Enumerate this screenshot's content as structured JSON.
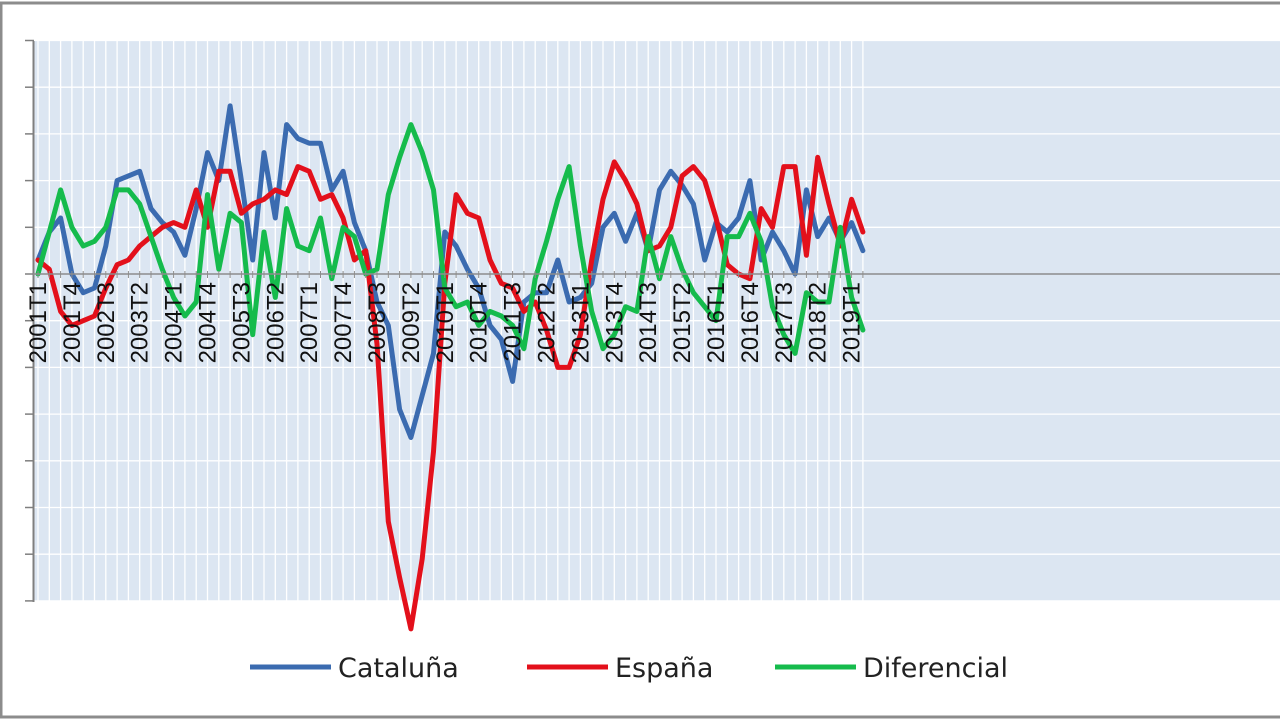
{
  "chart_data": {
    "type": "line",
    "x": [
      "2001T1",
      "2001T2",
      "2001T3",
      "2001T4",
      "2002T1",
      "2002T2",
      "2002T3",
      "2002T4",
      "2003T1",
      "2003T2",
      "2003T3",
      "2003T4",
      "2004T1",
      "2004T2",
      "2004T3",
      "2004T4",
      "2005T1",
      "2005T2",
      "2005T3",
      "2005T4",
      "2006T1",
      "2006T2",
      "2006T3",
      "2006T4",
      "2007T1",
      "2007T2",
      "2007T3",
      "2007T4",
      "2008T1",
      "2008T2",
      "2008T3",
      "2008T4",
      "2009T1",
      "2009T2",
      "2009T3",
      "2009T4",
      "2010T1",
      "2010T2",
      "2010T3",
      "2010T4",
      "2011T1",
      "2011T2",
      "2011T3",
      "2011T4",
      "2012T1",
      "2012T2",
      "2012T3",
      "2012T4",
      "2013T1",
      "2013T2",
      "2013T3",
      "2013T4",
      "2014T1",
      "2014T2",
      "2014T3",
      "2014T4",
      "2015T1",
      "2015T2",
      "2015T3",
      "2015T4",
      "2016T1",
      "2016T2",
      "2016T3",
      "2016T4",
      "2017T1",
      "2017T2",
      "2017T3",
      "2017T4",
      "2018T1",
      "2018T2",
      "2018T3",
      "2018T4",
      "2019T1",
      "2019T2"
    ],
    "x_tick_labels": [
      "2001T1",
      "2001T4",
      "2002T3",
      "2003T2",
      "2004T1",
      "2004T4",
      "2005T3",
      "2006T2",
      "2007T1",
      "2007T4",
      "2008T3",
      "2009T2",
      "2010T1",
      "2010T4",
      "2011T3",
      "2012T2",
      "2013T1",
      "2013T4",
      "2014T3",
      "2015T2",
      "2016T1",
      "2016T4",
      "2017T3",
      "2018T2",
      "2019T1"
    ],
    "y_gridlines": [
      5,
      4,
      3,
      2,
      1,
      0,
      -1,
      -2,
      -3,
      -4,
      -5,
      -6,
      -7
    ],
    "series": [
      {
        "name": "Cataluña",
        "color": "#3b6bb0",
        "values": [
          0.3,
          0.9,
          1.2,
          0,
          -0.4,
          -0.3,
          0.6,
          2,
          2.1,
          2.2,
          1.4,
          1.1,
          0.9,
          0.4,
          1.4,
          2.6,
          2,
          3.6,
          2,
          0.3,
          2.6,
          1.2,
          3.2,
          2.9,
          2.8,
          2.8,
          1.8,
          2.2,
          1.1,
          0.5,
          -0.6,
          -1.1,
          -2.9,
          -3.5,
          -2.6,
          -1.7,
          0.9,
          0.6,
          0.1,
          -0.3,
          -1.1,
          -1.4,
          -2.3,
          -0.6,
          -0.4,
          -0.4,
          0.3,
          -0.6,
          -0.5,
          -0.2,
          1,
          1.3,
          0.7,
          1.3,
          0.5,
          1.8,
          2.2,
          1.9,
          1.5,
          0.3,
          1.1,
          0.9,
          1.2,
          2,
          0.3,
          0.9,
          0.5,
          0,
          1.8,
          0.8,
          1.2,
          0.7,
          1.1,
          0.5
        ]
      },
      {
        "name": "España",
        "color": "#e3101b",
        "values": [
          0.3,
          0.1,
          -0.8,
          -1.1,
          -1,
          -0.9,
          -0.3,
          0.2,
          0.3,
          0.6,
          0.8,
          1,
          1.1,
          1,
          1.8,
          1,
          2.2,
          2.2,
          1.3,
          1.5,
          1.6,
          1.8,
          1.7,
          2.3,
          2.2,
          1.6,
          1.7,
          1.2,
          0.3,
          0.5,
          -1.5,
          -5.3,
          -6.5,
          -7.6,
          -6.1,
          -3.8,
          -0.2,
          1.7,
          1.3,
          1.2,
          0.3,
          -0.2,
          -0.3,
          -0.8,
          -0.6,
          -1.2,
          -2,
          -2,
          -1.3,
          0.3,
          1.6,
          2.4,
          2,
          1.5,
          0.5,
          0.6,
          1,
          2.1,
          2.3,
          2,
          1.2,
          0.2,
          0,
          -0.1,
          1.4,
          1,
          2.3,
          2.3,
          0.4,
          2.5,
          1.5,
          0.6,
          1.6,
          0.9
        ]
      },
      {
        "name": "Diferencial",
        "color": "#15bb4c",
        "values": [
          0,
          0.9,
          1.8,
          1,
          0.6,
          0.7,
          1,
          1.8,
          1.8,
          1.5,
          0.8,
          0.1,
          -0.5,
          -0.9,
          -0.6,
          1.7,
          0.1,
          1.3,
          1.1,
          -1.3,
          0.9,
          -0.5,
          1.4,
          0.6,
          0.5,
          1.2,
          -0.1,
          1,
          0.8,
          0,
          0.1,
          1.7,
          2.5,
          3.2,
          2.6,
          1.8,
          -0.3,
          -0.7,
          -0.6,
          -1.1,
          -0.8,
          -0.9,
          -1.1,
          -1.6,
          -0.1,
          0.7,
          1.6,
          2.3,
          0.6,
          -0.8,
          -1.6,
          -1.3,
          -0.7,
          -0.8,
          0.8,
          -0.1,
          0.8,
          0.1,
          -0.4,
          -0.7,
          -1,
          0.8,
          0.8,
          1.3,
          0.7,
          -0.7,
          -1.3,
          -1.7,
          -0.4,
          -0.6,
          -0.6,
          1,
          -0.5,
          -1.2
        ]
      }
    ],
    "grid": true,
    "legend_position": "bottom"
  }
}
